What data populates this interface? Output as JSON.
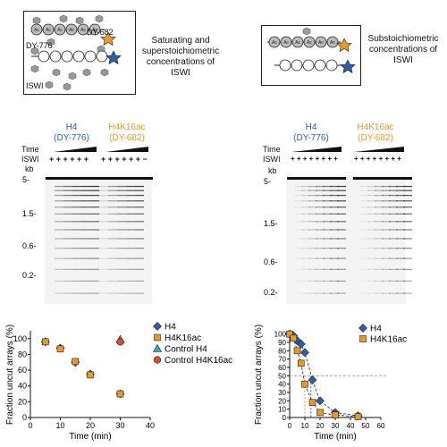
{
  "schematic_left": {
    "label_dy682": "DY-682",
    "label_dy776": "DY-776",
    "label_iswi": "ISWI",
    "ac_label": "Ac",
    "caption": "Saturating and superstoichiometric concentrations of ISWI"
  },
  "schematic_right": {
    "ac_label": "Ac",
    "caption": "Substoichiometric concentrations of ISWI"
  },
  "gels": {
    "left": {
      "h4_label": "H4",
      "h4_dye": "(DY-776)",
      "ac_label": "H4K16ac",
      "ac_dye": "(DY-682)",
      "time_label": "Time",
      "iswi_label": "ISWI",
      "kb_label": "kb",
      "plus_signs_h4": "+ + + + + +",
      "plus_signs_ac": "+ + + + + + −",
      "markers": [
        "5-",
        "1.5-",
        "0.6-",
        "0.2-"
      ]
    },
    "right": {
      "h4_label": "H4",
      "h4_dye": "(DY-776)",
      "ac_label": "H4K16ac",
      "ac_dye": "(DY-682)",
      "time_label": "Time",
      "iswi_label": "ISWI",
      "kb_label": "kb",
      "plus_signs_h4": "+ + + + + + + +",
      "plus_signs_ac": "+ + + + + + + +",
      "markers": [
        "5-",
        "1.5-",
        "0.6-",
        "0.2-"
      ]
    }
  },
  "colors": {
    "h4": "#2f5fa8",
    "h4k16ac": "#e79a2b",
    "control_h4": "#3fa7b5",
    "control_ac": "#e5472e",
    "grey": "#999999"
  },
  "chart_data": [
    {
      "type": "scatter",
      "xlabel": "Time (min)",
      "ylabel": "Fraction uncut arrays (%)",
      "xlim": [
        0,
        40
      ],
      "ylim": [
        0,
        110
      ],
      "xticks": [
        "0",
        "10",
        "20",
        "30",
        "40"
      ],
      "yticks": [
        "0",
        "20",
        "40",
        "60",
        "80",
        "100"
      ],
      "legend": [
        "H4",
        "H4K16ac",
        "Control H4",
        "Control H4K16ac"
      ],
      "series": [
        {
          "name": "H4",
          "x": [
            5,
            10,
            15,
            20,
            30
          ],
          "y": [
            96,
            88,
            70,
            55,
            30
          ]
        },
        {
          "name": "H4K16ac",
          "x": [
            5,
            10,
            15,
            20,
            30
          ],
          "y": [
            96,
            87,
            71,
            54,
            30
          ]
        },
        {
          "name": "Control H4",
          "x": [
            30
          ],
          "y": [
            99
          ]
        },
        {
          "name": "Control H4K16ac",
          "x": [
            30
          ],
          "y": [
            96
          ]
        }
      ]
    },
    {
      "type": "line",
      "xlabel": "Time (min)",
      "ylabel": "Fraction uncut arrays (%)",
      "xlim": [
        0,
        60
      ],
      "ylim": [
        0,
        105
      ],
      "xticks": [
        "0",
        "10",
        "20",
        "30",
        "40",
        "50",
        "60"
      ],
      "yticks": [
        "0",
        "10",
        "20",
        "30",
        "40",
        "50",
        "60",
        "70",
        "80",
        "90",
        "100"
      ],
      "legend": [
        "H4",
        "H4K16ac"
      ],
      "series": [
        {
          "name": "H4",
          "x": [
            0,
            2.5,
            5,
            7.5,
            10,
            15,
            20,
            30,
            45
          ],
          "y": [
            100,
            98,
            92,
            88,
            78,
            45,
            20,
            6,
            2
          ]
        },
        {
          "name": "H4K16ac",
          "x": [
            0,
            2.5,
            5,
            7.5,
            10,
            15,
            20,
            30,
            45
          ],
          "y": [
            100,
            95,
            80,
            65,
            40,
            18,
            6,
            3,
            1
          ]
        }
      ],
      "halfmax": 50
    }
  ]
}
